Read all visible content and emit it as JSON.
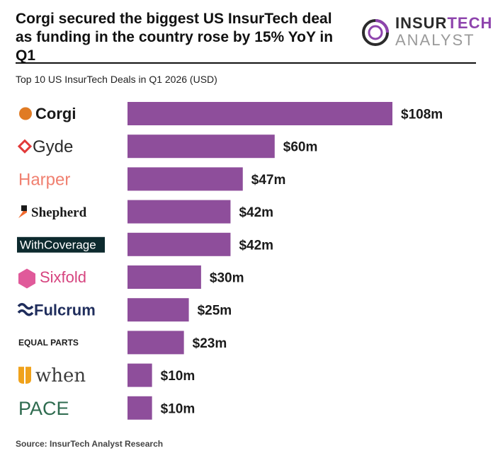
{
  "headline": "Corgi secured the biggest US InsurTech deal as funding in the country rose by 15% YoY in Q1",
  "brand": {
    "top_a": "INSUR",
    "top_b": "TECH",
    "bottom": "ANALYST",
    "accent": "#8e44ad"
  },
  "subtitle": "Top 10 US InsurTech Deals in Q1 2026 (USD)",
  "source": "Source: InsurTech Analyst Research",
  "chart_data": {
    "type": "bar",
    "orientation": "horizontal",
    "title": "Top 10 US InsurTech Deals in Q1 2026 (USD)",
    "categories": [
      "Corgi",
      "Gyde",
      "Harper",
      "Shepherd",
      "WithCoverage",
      "Sixfold",
      "Fulcrum",
      "EQUAL PARTS",
      "when",
      "PACE"
    ],
    "values": [
      108,
      60,
      47,
      42,
      42,
      30,
      25,
      23,
      10,
      10
    ],
    "labels": [
      "$108m",
      "$60m",
      "$47m",
      "$42m",
      "$42m",
      "$30m",
      "$25m",
      "$23m",
      "$10m",
      "$10m"
    ],
    "unit": "USD millions",
    "bar_color": "#8e4e9b",
    "grid": false,
    "legend": "none",
    "xlim": [
      0,
      108
    ]
  },
  "logos": [
    {
      "name": "Corgi",
      "color": "#1a1a1a",
      "icon_color": "#e07b24"
    },
    {
      "name": "Gyde",
      "color": "#2b2b2b",
      "icon_color": "#e23a3a"
    },
    {
      "name": "Harper",
      "color": "#f08070"
    },
    {
      "name": "Shepherd",
      "color": "#1a1a1a",
      "icon_color": "#f26a2e"
    },
    {
      "name": "WithCoverage",
      "color": "#ffffff",
      "bg": "#0d2a2e"
    },
    {
      "name": "Sixfold",
      "color": "#d6447f",
      "icon_color": "#e05a9a"
    },
    {
      "name": "Fulcrum",
      "color": "#1f2d5c",
      "icon_color": "#1f2d5c"
    },
    {
      "name": "EQUAL PARTS",
      "color": "#1a1a1a"
    },
    {
      "name": "when",
      "color": "#3d3d3d",
      "icon_color": "#f0a21b"
    },
    {
      "name": "PACE",
      "color": "#2e6b4f"
    }
  ]
}
